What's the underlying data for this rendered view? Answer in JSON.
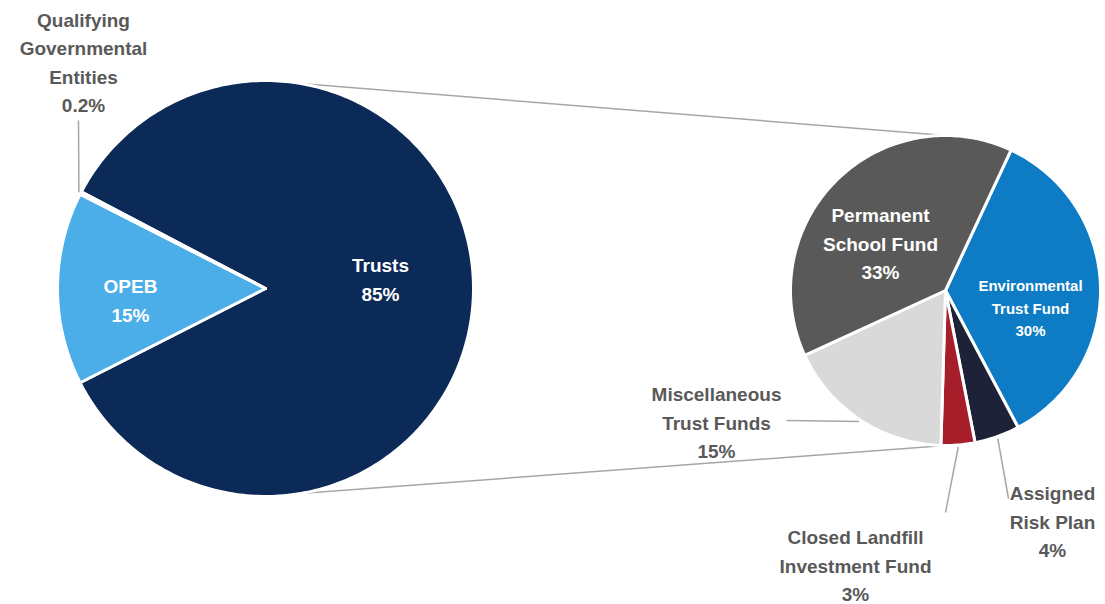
{
  "chart_data": [
    {
      "type": "pie",
      "categories": [
        "Trusts",
        "OPEB",
        "Qualifying Governmental Entities"
      ],
      "values": [
        85,
        15,
        0.2
      ],
      "value_labels": [
        "85%",
        "15%",
        "0.2%"
      ],
      "colors": [
        "#0c2a57",
        "#4baee8",
        "#d0d0d0"
      ],
      "data_labels": true
    },
    {
      "type": "pie",
      "categories": [
        "Environmental Trust Fund",
        "Assigned Risk Plan",
        "Closed Landfill Investment Fund",
        "Miscellaneous Trust Funds",
        "Permanent School Fund"
      ],
      "values": [
        30,
        4,
        3,
        15,
        33
      ],
      "value_labels": [
        "30%",
        "4%",
        "3%",
        "15%",
        "33%"
      ],
      "colors": [
        "#0e7cc4",
        "#1d2238",
        "#a51e2a",
        "#d9d9d9",
        "#595959"
      ],
      "data_labels": true
    }
  ]
}
